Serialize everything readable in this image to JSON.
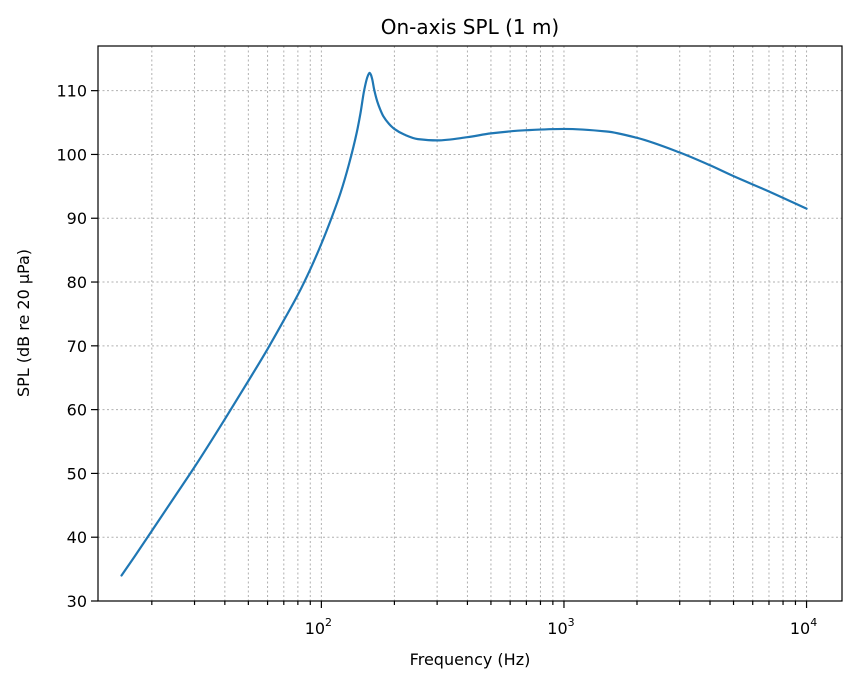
{
  "chart_data": {
    "type": "line",
    "title": "On-axis SPL (1 m)",
    "xlabel": "Frequency (Hz)",
    "ylabel": "SPL (dB re 20 µPa)",
    "xscale": "log",
    "xlim": [
      12,
      14000
    ],
    "ylim": [
      30,
      117
    ],
    "grid": "both (major and minor), dotted gray",
    "x_ticks": [
      {
        "base": "10",
        "exp": "2",
        "value": 100
      },
      {
        "base": "10",
        "exp": "3",
        "value": 1000
      },
      {
        "base": "10",
        "exp": "4",
        "value": 10000
      }
    ],
    "y_ticks": [
      {
        "label": "30",
        "value": 30
      },
      {
        "label": "40",
        "value": 40
      },
      {
        "label": "50",
        "value": 50
      },
      {
        "label": "60",
        "value": 60
      },
      {
        "label": "70",
        "value": 70
      },
      {
        "label": "80",
        "value": 80
      },
      {
        "label": "90",
        "value": 90
      },
      {
        "label": "100",
        "value": 100
      },
      {
        "label": "110",
        "value": 110
      }
    ],
    "series": [
      {
        "color": "#1f77b4",
        "x": [
          15,
          17,
          20,
          25,
          30,
          40,
          50,
          60,
          70,
          80,
          90,
          100,
          110,
          120,
          130,
          140,
          145,
          150,
          155,
          158,
          160,
          162,
          165,
          170,
          175,
          180,
          190,
          200,
          220,
          250,
          300,
          400,
          500,
          700,
          1000,
          1500,
          2000,
          3000,
          4000,
          5000,
          7000,
          10000
        ],
        "y": [
          34,
          37,
          41,
          46.5,
          51,
          58.5,
          64.5,
          69.5,
          74,
          78,
          82,
          86,
          90,
          94,
          98.5,
          103.5,
          106.5,
          110,
          112.2,
          112.8,
          112.5,
          111.8,
          110.2,
          108.3,
          107,
          106,
          104.8,
          104,
          103.1,
          102.4,
          102.2,
          102.7,
          103.3,
          103.8,
          104,
          103.6,
          102.6,
          100.3,
          98.3,
          96.6,
          94.2,
          91.5
        ]
      }
    ]
  }
}
